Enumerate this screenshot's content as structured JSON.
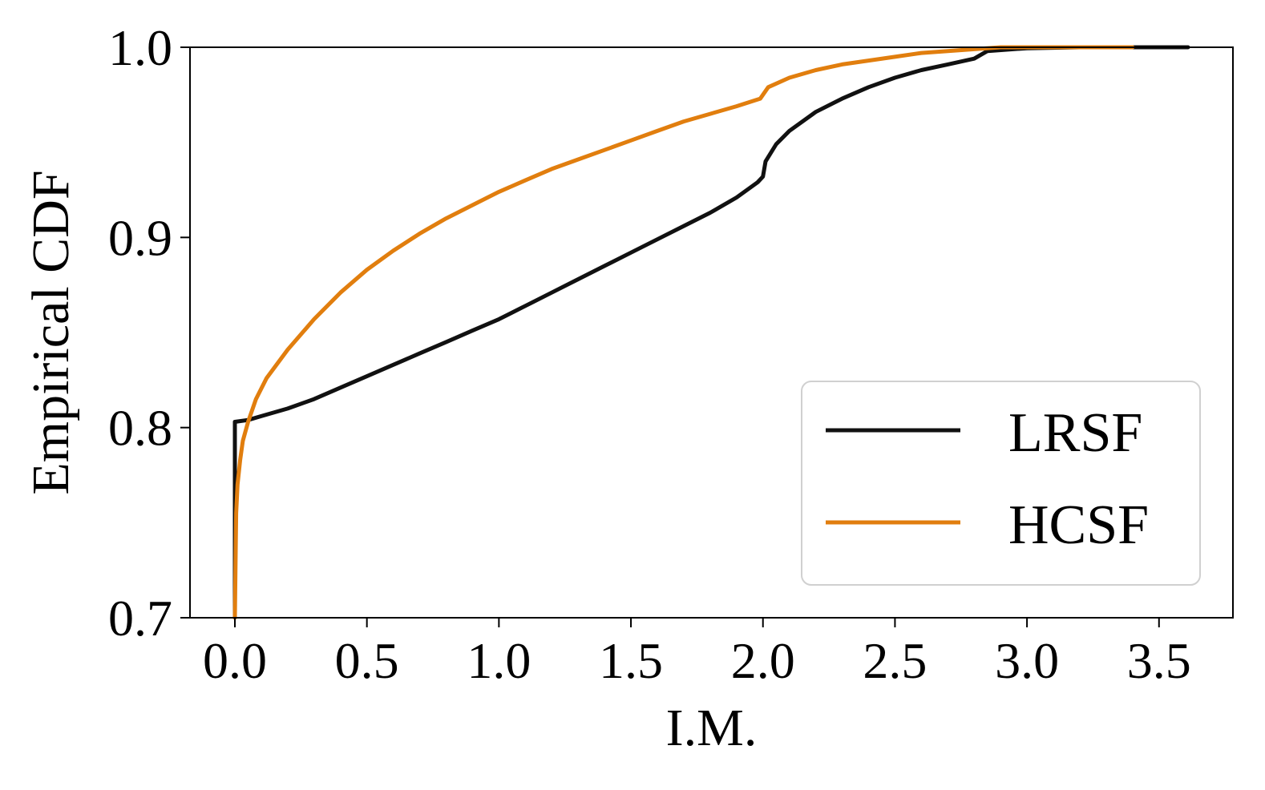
{
  "chart_data": {
    "type": "line",
    "title": "",
    "xlabel": "I.M.",
    "ylabel": "Empirical CDF",
    "xlim": [
      -0.17,
      3.78
    ],
    "ylim": [
      0.7,
      1.0
    ],
    "xticks": [
      0.0,
      0.5,
      1.0,
      1.5,
      2.0,
      2.5,
      3.0,
      3.5
    ],
    "xtick_labels": [
      "0.0",
      "0.5",
      "1.0",
      "1.5",
      "2.0",
      "2.5",
      "3.0",
      "3.5"
    ],
    "yticks": [
      0.7,
      0.8,
      0.9,
      1.0
    ],
    "ytick_labels": [
      "0.7",
      "0.8",
      "0.9",
      "1.0"
    ],
    "grid": false,
    "legend_position": "lower-right",
    "series": [
      {
        "name": "LRSF",
        "color": "#111111",
        "points": [
          [
            0.0,
            0.7
          ],
          [
            0.0,
            0.803
          ],
          [
            0.05,
            0.804
          ],
          [
            0.1,
            0.806
          ],
          [
            0.2,
            0.81
          ],
          [
            0.3,
            0.815
          ],
          [
            0.4,
            0.821
          ],
          [
            0.5,
            0.827
          ],
          [
            0.6,
            0.833
          ],
          [
            0.7,
            0.839
          ],
          [
            0.8,
            0.845
          ],
          [
            0.9,
            0.851
          ],
          [
            1.0,
            0.857
          ],
          [
            1.1,
            0.864
          ],
          [
            1.2,
            0.871
          ],
          [
            1.3,
            0.878
          ],
          [
            1.4,
            0.885
          ],
          [
            1.5,
            0.892
          ],
          [
            1.6,
            0.899
          ],
          [
            1.7,
            0.906
          ],
          [
            1.8,
            0.913
          ],
          [
            1.9,
            0.921
          ],
          [
            1.98,
            0.929
          ],
          [
            2.0,
            0.932
          ],
          [
            2.01,
            0.94
          ],
          [
            2.05,
            0.949
          ],
          [
            2.1,
            0.956
          ],
          [
            2.2,
            0.966
          ],
          [
            2.3,
            0.973
          ],
          [
            2.4,
            0.979
          ],
          [
            2.5,
            0.984
          ],
          [
            2.6,
            0.988
          ],
          [
            2.7,
            0.991
          ],
          [
            2.8,
            0.994
          ],
          [
            2.85,
            0.998
          ],
          [
            3.0,
            0.9995
          ],
          [
            3.2,
            1.0
          ],
          [
            3.61,
            1.0
          ]
        ]
      },
      {
        "name": "HCSF",
        "color": "#e17e0e",
        "points": [
          [
            0.0,
            0.7
          ],
          [
            0.005,
            0.755
          ],
          [
            0.01,
            0.77
          ],
          [
            0.02,
            0.783
          ],
          [
            0.03,
            0.793
          ],
          [
            0.05,
            0.803
          ],
          [
            0.08,
            0.815
          ],
          [
            0.12,
            0.826
          ],
          [
            0.2,
            0.841
          ],
          [
            0.3,
            0.857
          ],
          [
            0.4,
            0.871
          ],
          [
            0.5,
            0.883
          ],
          [
            0.6,
            0.893
          ],
          [
            0.7,
            0.902
          ],
          [
            0.8,
            0.91
          ],
          [
            0.9,
            0.917
          ],
          [
            1.0,
            0.924
          ],
          [
            1.1,
            0.93
          ],
          [
            1.2,
            0.936
          ],
          [
            1.3,
            0.941
          ],
          [
            1.4,
            0.946
          ],
          [
            1.5,
            0.951
          ],
          [
            1.6,
            0.956
          ],
          [
            1.7,
            0.961
          ],
          [
            1.8,
            0.965
          ],
          [
            1.9,
            0.969
          ],
          [
            1.99,
            0.973
          ],
          [
            2.0,
            0.975
          ],
          [
            2.02,
            0.979
          ],
          [
            2.1,
            0.984
          ],
          [
            2.2,
            0.988
          ],
          [
            2.3,
            0.991
          ],
          [
            2.4,
            0.993
          ],
          [
            2.5,
            0.995
          ],
          [
            2.6,
            0.997
          ],
          [
            2.8,
            0.999
          ],
          [
            2.9,
            1.0
          ],
          [
            3.4,
            1.0
          ]
        ]
      }
    ]
  }
}
